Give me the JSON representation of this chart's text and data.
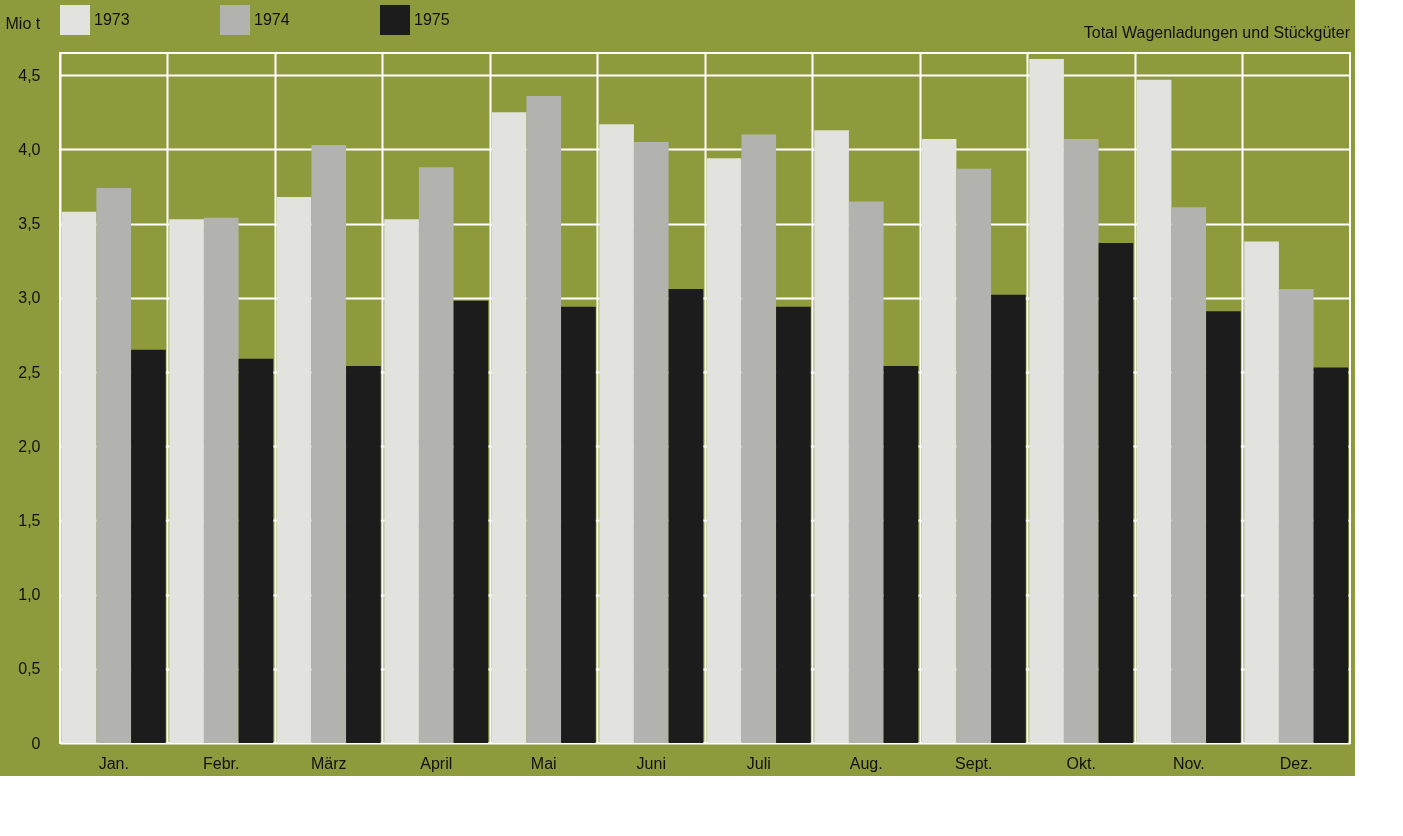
{
  "chart_data": {
    "type": "bar",
    "title": "Total Wagenladungen und Stückgüter",
    "ylabel": "Mio t",
    "categories": [
      "Jan.",
      "Febr.",
      "März",
      "April",
      "Mai",
      "Juni",
      "Juli",
      "Aug.",
      "Sept.",
      "Okt.",
      "Nov.",
      "Dez."
    ],
    "series": [
      {
        "name": "1973",
        "color": "#e2e2de",
        "values": [
          3.58,
          3.53,
          3.68,
          3.53,
          4.25,
          4.17,
          3.94,
          4.13,
          4.07,
          4.61,
          4.47,
          3.38
        ]
      },
      {
        "name": "1974",
        "color": "#b2b2ae",
        "values": [
          3.74,
          3.54,
          4.03,
          3.88,
          4.36,
          4.05,
          4.1,
          3.65,
          3.87,
          4.07,
          3.61,
          3.06
        ]
      },
      {
        "name": "1975",
        "color": "#1c1c1c",
        "values": [
          2.65,
          2.59,
          2.54,
          2.98,
          2.94,
          3.06,
          2.94,
          2.54,
          3.02,
          3.37,
          2.91,
          2.53
        ]
      }
    ],
    "ylim": [
      0,
      4.65
    ],
    "yticks": [
      0,
      {
        "value": 0.5,
        "label": "0,5"
      },
      {
        "value": 1.0,
        "label": "1,0"
      },
      {
        "value": 1.5,
        "label": "1,5"
      },
      {
        "value": 2.0,
        "label": "2,0"
      },
      {
        "value": 2.5,
        "label": "2,5"
      },
      {
        "value": 3.0,
        "label": "3,0"
      },
      {
        "value": 3.5,
        "label": "3,5"
      },
      {
        "value": 4.0,
        "label": "4,0"
      },
      {
        "value": 4.5,
        "label": "4,5"
      }
    ],
    "grid": true,
    "legend": "top"
  }
}
